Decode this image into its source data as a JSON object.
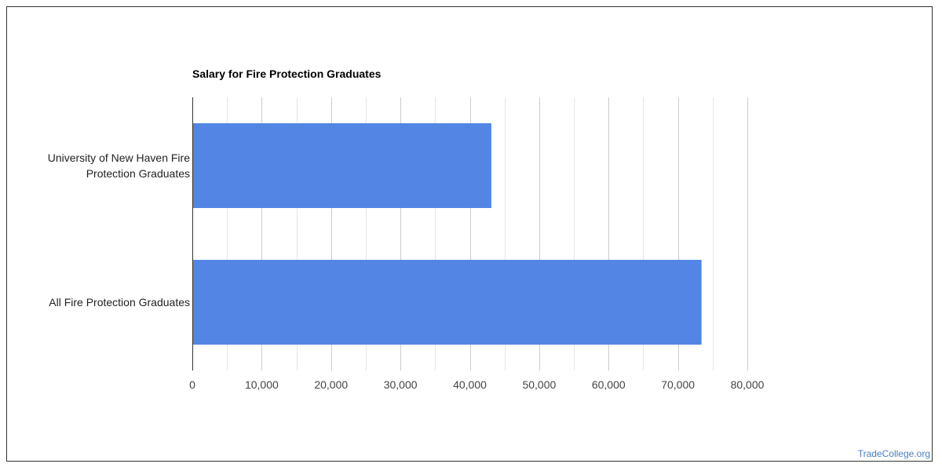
{
  "chart_data": {
    "type": "bar",
    "orientation": "horizontal",
    "title": "Salary for Fire Protection Graduates",
    "categories": [
      [
        "University of New Haven Fire",
        "Protection Graduates"
      ],
      [
        "All Fire Protection Graduates"
      ]
    ],
    "values": [
      43100,
      73400
    ],
    "xlim": [
      0,
      80000
    ],
    "major_ticks": [
      0,
      10000,
      20000,
      30000,
      40000,
      50000,
      60000,
      70000,
      80000
    ],
    "tick_labels": [
      "0",
      "10,000",
      "20,000",
      "30,000",
      "40,000",
      "50,000",
      "60,000",
      "70,000",
      "80,000"
    ],
    "minor_gridlines": true,
    "grid": true,
    "bar_color": "#5386e4"
  },
  "footer": {
    "source_label": "TradeCollege.org"
  },
  "colors": {
    "bar": "#5386e4",
    "major_grid": "#cccccc",
    "minor_grid": "#e6e6e6",
    "axis": "#333333",
    "source": "#4a7fc1"
  }
}
